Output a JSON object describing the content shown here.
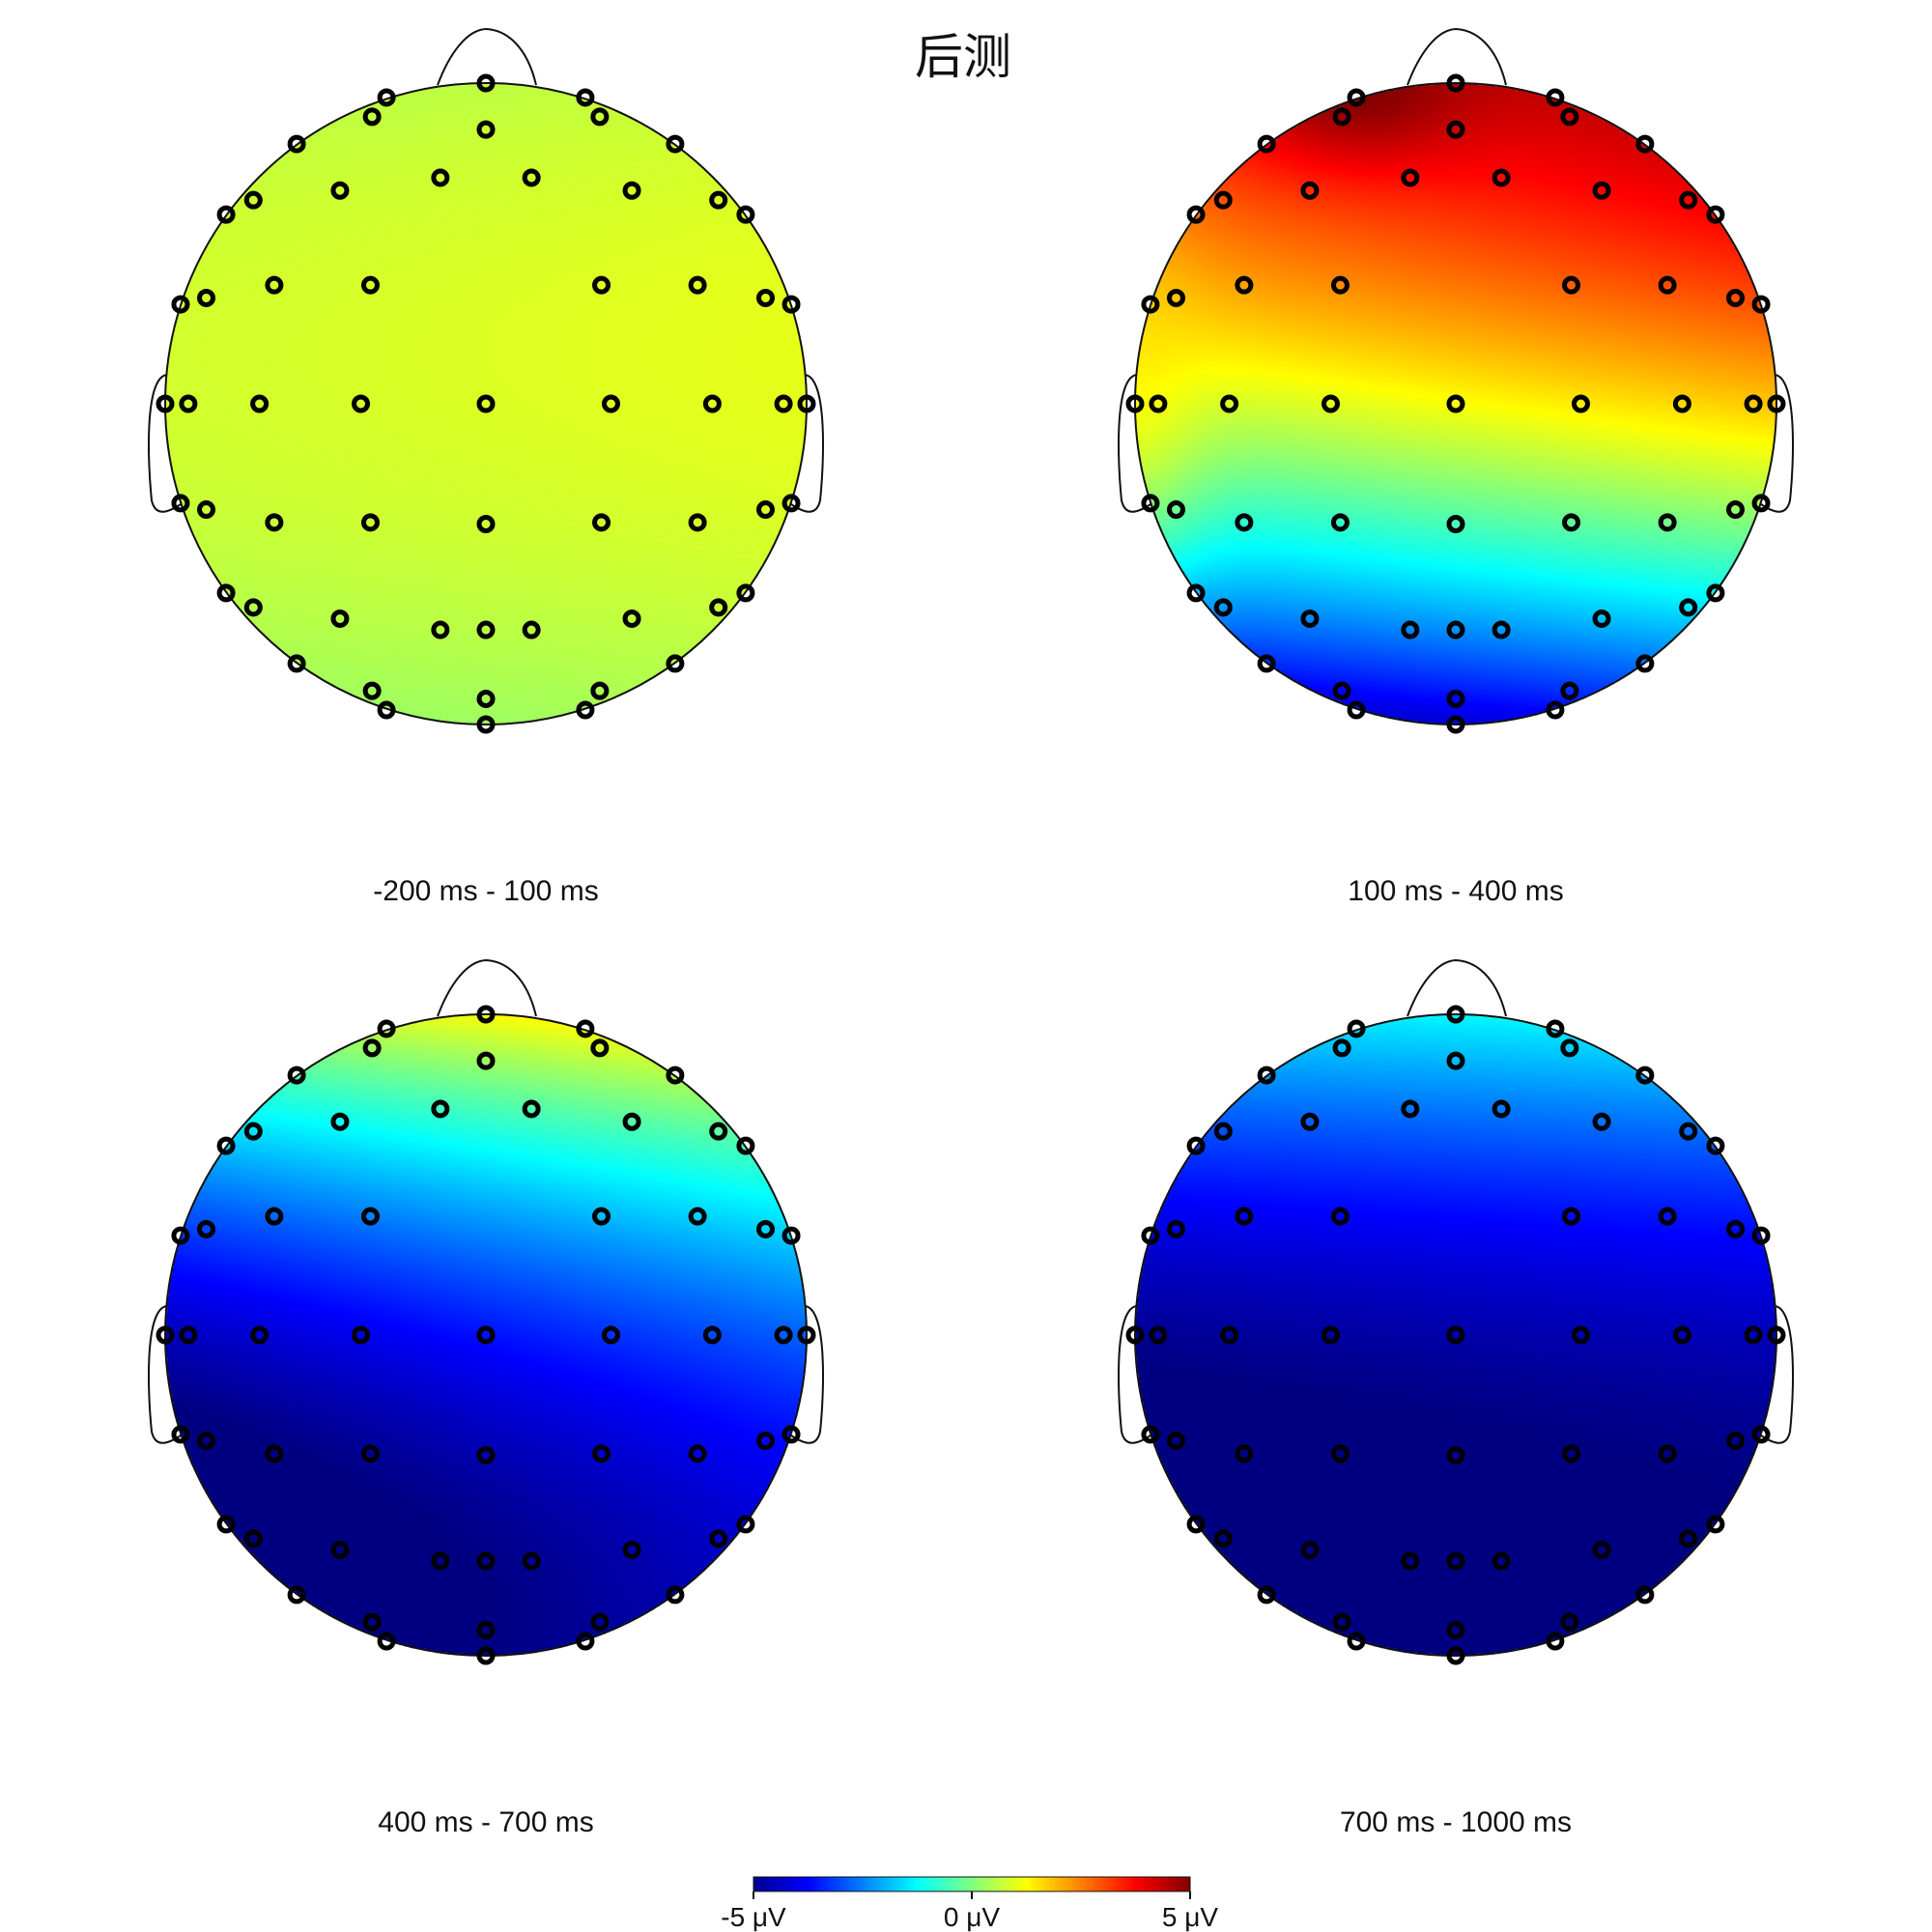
{
  "title": "后测",
  "chart_data": {
    "type": "heatmap",
    "subtype": "eeg-topographic-map",
    "title": "后测",
    "colormap": "jet",
    "value_range": [
      -5,
      5
    ],
    "unit": "μV",
    "colorbar": {
      "ticks": [
        -5,
        0,
        5
      ],
      "tick_labels": [
        "-5 μV",
        "0 μV",
        "5 μV"
      ]
    },
    "maps": [
      {
        "label": "-200 ms - 100 ms",
        "anterior_uV": 0.6,
        "central_uV": 0.9,
        "posterior_uV": 0.3,
        "left_right_tilt_uV": 0.1
      },
      {
        "label": "100 ms - 400 ms",
        "anterior_uV": 4.2,
        "central_uV": 1.2,
        "posterior_uV": -4.2,
        "left_right_tilt_uV": 0.6,
        "left_edge_uV": 1.6,
        "frontal_peak_uV": 5.0
      },
      {
        "label": "400 ms - 700 ms",
        "anterior_uV": 1.2,
        "central_uV": -3.6,
        "posterior_uV": -5.0,
        "left_right_tilt_uV": 0.8
      },
      {
        "label": "700 ms - 1000 ms",
        "anterior_uV": -1.3,
        "central_uV": -4.6,
        "posterior_uV": -5.0,
        "left_right_tilt_uV": 0.2
      }
    ]
  }
}
